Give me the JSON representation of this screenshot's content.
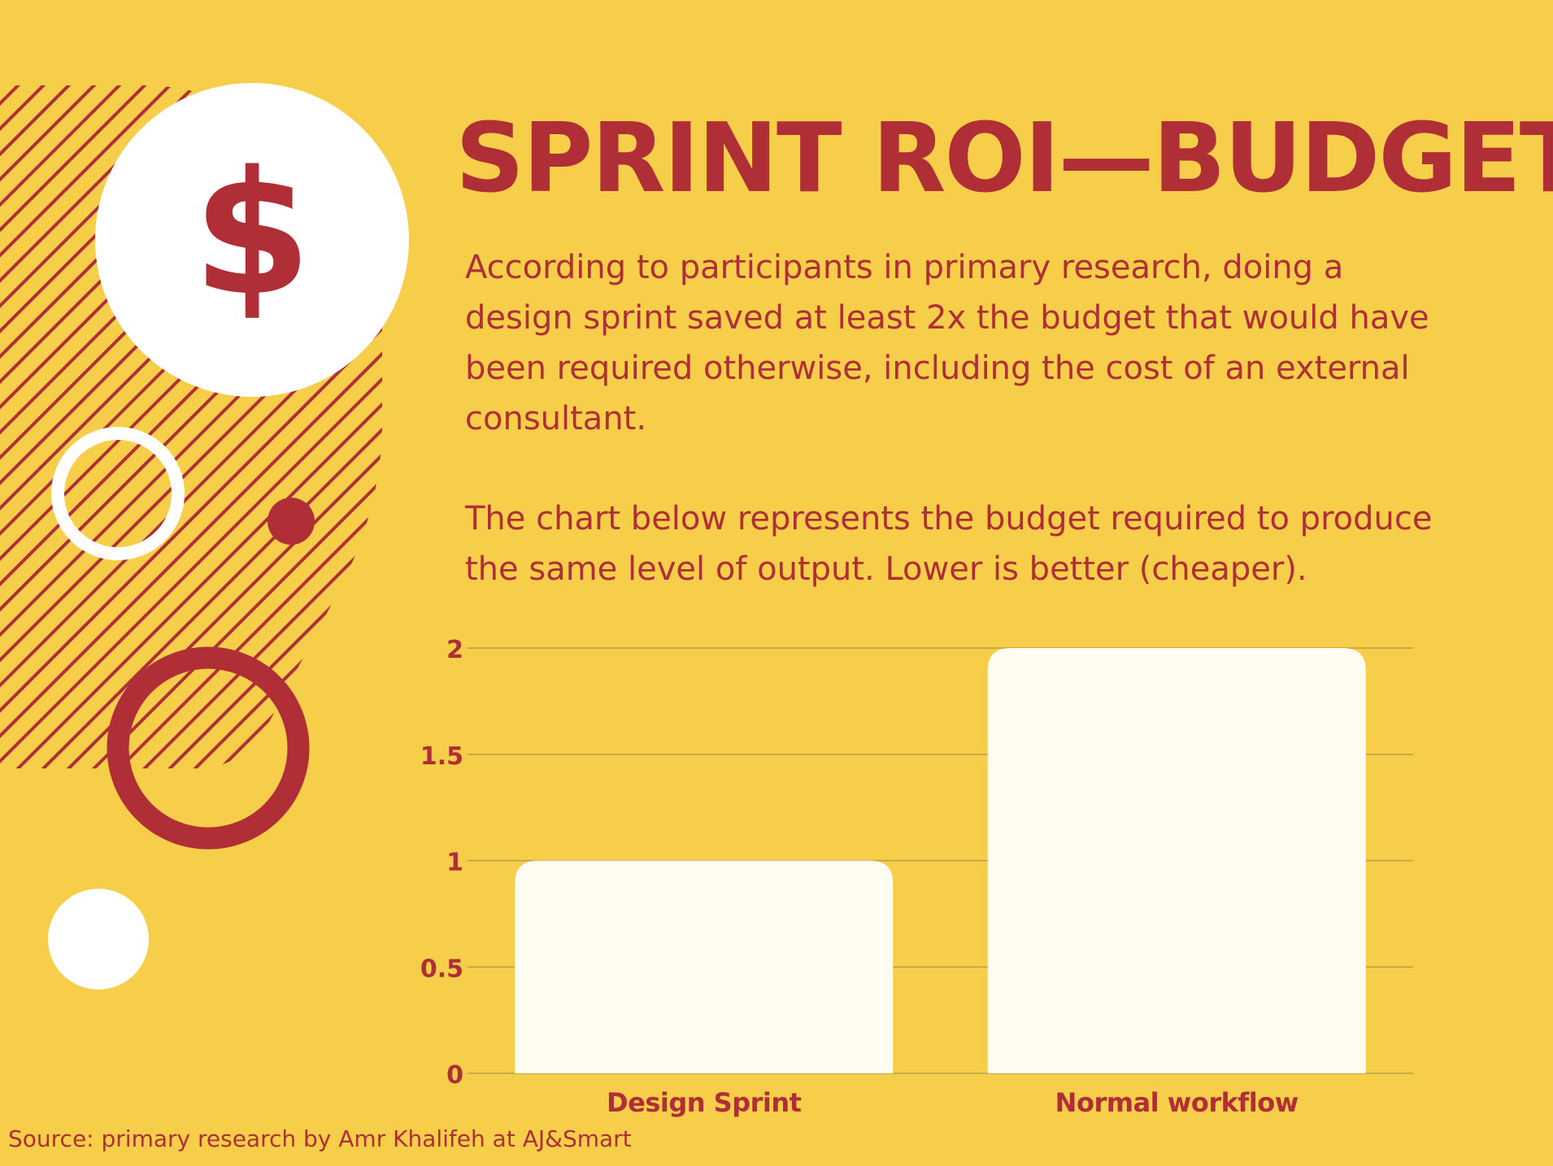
{
  "title": "SPRINT ROI—BUDGET",
  "paragraphs": [
    "According to participants in primary research, doing a design sprint saved at least 2x the budget that would have been required otherwise, including the cost of an external consultant.",
    "The chart below represents the budget required to produce the same level of output. Lower is better (cheaper)."
  ],
  "icon": "dollar-sign-icon",
  "dollar_symbol": "$",
  "source": "Source: primary research by Amr Khalifeh at AJ&Smart",
  "colors": {
    "background": "#f7ce4a",
    "accent": "#b02e36",
    "bar": "#fffdf2",
    "gridline": "#b9a046"
  },
  "chart_data": {
    "type": "bar",
    "categories": [
      "Design Sprint",
      "Normal workflow"
    ],
    "values": [
      1,
      2
    ],
    "yticks": [
      "0",
      "0.5",
      "1",
      "1.5",
      "2"
    ],
    "ylim": [
      0,
      2
    ],
    "grid": true,
    "legend": "none"
  }
}
